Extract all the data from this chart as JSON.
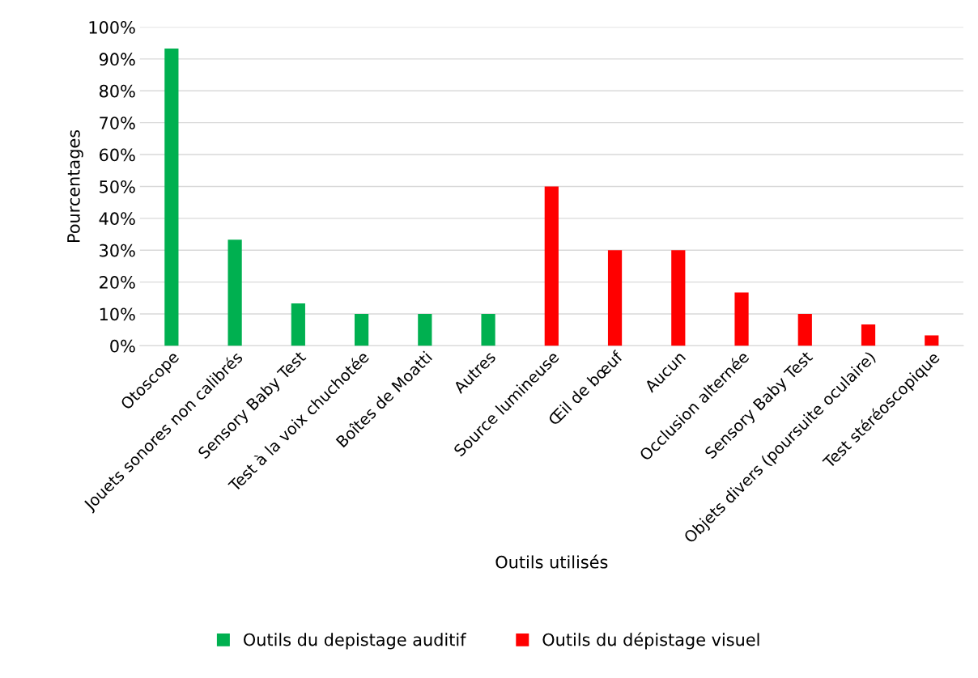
{
  "chart_data": {
    "type": "bar",
    "xlabel": "Outils utilisés",
    "ylabel": "Pourcentages",
    "categories": [
      "Otoscope",
      "Jouets sonores non calibrés",
      "Sensory Baby Test",
      "Test à la voix chuchotée",
      "Boîtes de Moatti",
      "Autres",
      "Source lumineuse",
      "Œil de bœuf",
      "Aucun",
      "Occlusion alternée",
      "Sensory Baby Test",
      "Objets divers (poursuite oculaire)",
      "Test stéréoscopique"
    ],
    "series": [
      {
        "name": "Outils du depistage auditif",
        "color": "#00b050",
        "values": [
          93.3,
          33.3,
          13.3,
          10,
          10,
          10,
          null,
          null,
          null,
          null,
          null,
          null,
          null
        ]
      },
      {
        "name": "Outils du dépistage visuel",
        "color": "#ff0000",
        "values": [
          null,
          null,
          null,
          null,
          null,
          null,
          50,
          30,
          30,
          16.7,
          10,
          6.7,
          3.3
        ]
      }
    ],
    "ylim": [
      0,
      100
    ],
    "yticks": [
      {
        "value": 0,
        "label": "0%"
      },
      {
        "value": 10,
        "label": "10%"
      },
      {
        "value": 20,
        "label": "20%"
      },
      {
        "value": 30,
        "label": "30%"
      },
      {
        "value": 40,
        "label": "40%"
      },
      {
        "value": 50,
        "label": "50%"
      },
      {
        "value": 60,
        "label": "60%"
      },
      {
        "value": 70,
        "label": "70%"
      },
      {
        "value": 80,
        "label": "80%"
      },
      {
        "value": 90,
        "label": "90%"
      },
      {
        "value": 100,
        "label": "100%"
      }
    ],
    "grid": "y",
    "legend": "bottom"
  }
}
